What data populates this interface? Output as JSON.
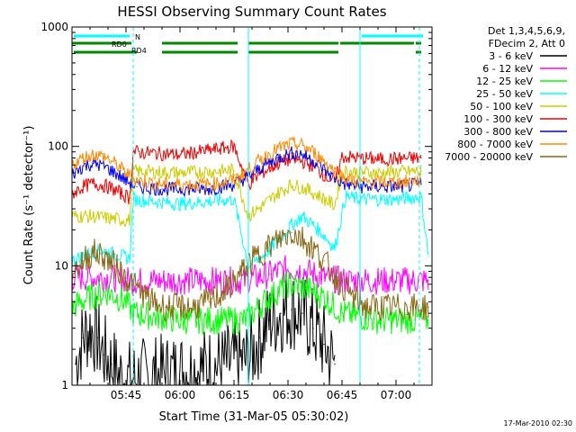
{
  "chart_data": {
    "type": "line",
    "title": "HESSI Observing Summary Count Rates",
    "xlabel": "Start Time (31-Mar-05 05:30:02)",
    "ylabel": "Count Rate (s⁻¹ detector⁻¹)",
    "yscale": "log",
    "xlim": [
      0.0,
      100.0
    ],
    "ylim": [
      1,
      1000
    ],
    "x_units": "minutes after 05:30:00",
    "xticks": [
      {
        "value": 15,
        "label": "05:45"
      },
      {
        "value": 30,
        "label": "06:00"
      },
      {
        "value": 45,
        "label": "06:15"
      },
      {
        "value": 60,
        "label": "06:30"
      },
      {
        "value": 75,
        "label": "06:45"
      },
      {
        "value": 90,
        "label": "07:00"
      }
    ],
    "yticks": [
      {
        "value": 1,
        "label": "1"
      },
      {
        "value": 10,
        "label": "10"
      },
      {
        "value": 100,
        "label": "100"
      },
      {
        "value": 1000,
        "label": "1000"
      }
    ],
    "legend": {
      "position": "right",
      "header": [
        "Det 1,3,4,5,6,9,",
        "FDecim 2, Att 0"
      ],
      "entries": [
        {
          "label": "3 - 6 keV",
          "color": "#000000"
        },
        {
          "label": "6 - 12 keV",
          "color": "#ff00ff"
        },
        {
          "label": "12 - 25 keV",
          "color": "#00ff00"
        },
        {
          "label": "25 - 50 keV",
          "color": "#00ffff"
        },
        {
          "label": "50 - 100 keV",
          "color": "#cccc00"
        },
        {
          "label": "100 - 300 keV",
          "color": "#ee0000"
        },
        {
          "label": "300 - 800 keV",
          "color": "#0000ee"
        },
        {
          "label": "800 - 7000 keV",
          "color": "#ff8800"
        },
        {
          "label": "7000 - 20000 keV",
          "color": "#886611"
        }
      ]
    },
    "flags": [
      {
        "label": "N",
        "color": "#00ffff",
        "segments": [
          [
            0.5,
            16.0
          ],
          [
            80.5,
            97.5
          ]
        ]
      },
      {
        "label": "RD0",
        "color": "#008800",
        "segments": [
          [
            0.0,
            16.5
          ],
          [
            25.0,
            46.0
          ],
          [
            49.0,
            74.0
          ],
          [
            74.5,
            95.0
          ],
          [
            95.5,
            97.0
          ]
        ]
      },
      {
        "label": "RD4",
        "color": "#008800",
        "segments": [
          [
            0.5,
            18.0
          ],
          [
            25.0,
            46.0
          ],
          [
            49.0,
            74.0
          ],
          [
            95.5,
            97.0
          ]
        ]
      }
    ],
    "saa_markers": [
      {
        "x": 17.0,
        "style": "dashed",
        "color": "#00ffff"
      },
      {
        "x": 49.0,
        "style": "solid",
        "color": "#00ffff"
      },
      {
        "x": 80.0,
        "style": "solid",
        "color": "#00ffff"
      },
      {
        "x": 96.5,
        "style": "dashed",
        "color": "#00ffff"
      }
    ],
    "series": [
      {
        "name": "3 - 6 keV",
        "color": "#000000",
        "x": [
          1,
          3,
          5,
          7,
          9,
          11,
          13,
          15,
          49,
          52,
          55,
          58,
          61,
          64,
          67,
          70,
          73
        ],
        "y": [
          1.5,
          2.5,
          3.0,
          2.5,
          1.8,
          1.5,
          1.2,
          1.1,
          1.6,
          2.5,
          3.5,
          4.0,
          4.3,
          4.0,
          3.0,
          2.2,
          1.5
        ]
      },
      {
        "name": "6 - 12 keV",
        "color": "#ff00ff",
        "x": [
          0,
          10,
          17,
          30,
          40,
          48,
          55,
          60,
          65,
          70,
          75,
          85,
          95,
          99
        ],
        "y": [
          8.0,
          8.0,
          7.5,
          7.5,
          7.5,
          7.5,
          8.5,
          9.5,
          9.0,
          8.0,
          7.5,
          7.5,
          7.5,
          7.5
        ]
      },
      {
        "name": "12 - 25 keV",
        "color": "#00ff00",
        "x": [
          0,
          5,
          10,
          15,
          17,
          30,
          40,
          48,
          55,
          60,
          65,
          70,
          75,
          85,
          95,
          99
        ],
        "y": [
          4.5,
          5.5,
          6.0,
          5.0,
          4.0,
          3.5,
          3.5,
          3.5,
          5.5,
          7.0,
          6.5,
          5.5,
          4.0,
          3.5,
          3.5,
          3.5
        ]
      },
      {
        "name": "25 - 50 keV",
        "color": "#00ffff",
        "x": [
          0,
          4,
          8,
          12,
          16,
          17,
          30,
          45,
          49,
          53,
          57,
          61,
          64,
          67,
          70,
          73,
          76,
          80,
          90,
          97,
          99
        ],
        "y": [
          11.0,
          12.5,
          13.5,
          12.5,
          11.5,
          36.0,
          33.0,
          36.0,
          10.0,
          12.0,
          16.0,
          22.0,
          26.0,
          22.0,
          18.0,
          14.0,
          38.0,
          36.0,
          36.0,
          38.0,
          12.0
        ]
      },
      {
        "name": "50 - 100 keV",
        "color": "#cccc00",
        "x": [
          0,
          5,
          10,
          16,
          17,
          30,
          45,
          49,
          53,
          57,
          61,
          65,
          69,
          73,
          75,
          85,
          97
        ],
        "y": [
          26.0,
          26.0,
          25.0,
          24.0,
          62.0,
          60.0,
          63.0,
          26.0,
          32.0,
          40.0,
          48.0,
          44.0,
          38.0,
          32.0,
          62.0,
          60.0,
          62.0
        ]
      },
      {
        "name": "100 - 300 keV",
        "color": "#ee0000",
        "x": [
          0,
          3,
          6,
          9,
          12,
          16,
          17,
          30,
          45,
          49,
          52,
          55,
          58,
          61,
          64,
          67,
          70,
          73,
          75,
          85,
          97
        ],
        "y": [
          40.0,
          46.0,
          49.0,
          47.0,
          43.0,
          37.0,
          90.0,
          85.0,
          100.0,
          48.0,
          58.0,
          66.0,
          74.0,
          78.0,
          75.0,
          68.0,
          58.0,
          50.0,
          82.0,
          78.0,
          80.0
        ]
      },
      {
        "name": "300 - 800 keV",
        "color": "#0000ee",
        "x": [
          0,
          3,
          6,
          9,
          12,
          15,
          18,
          25,
          30,
          38,
          45,
          49,
          53,
          57,
          61,
          64,
          67,
          70,
          73,
          76,
          80,
          90,
          97
        ],
        "y": [
          58.0,
          68.0,
          72.0,
          68.0,
          60.0,
          52.0,
          46.0,
          44.0,
          44.0,
          44.0,
          48.0,
          56.0,
          68.0,
          80.0,
          88.0,
          86.0,
          76.0,
          64.0,
          54.0,
          48.0,
          46.0,
          46.0,
          48.0
        ]
      },
      {
        "name": "800 - 7000 keV",
        "color": "#ff8800",
        "x": [
          0,
          3,
          6,
          9,
          12,
          15,
          18,
          25,
          30,
          38,
          45,
          49,
          53,
          57,
          61,
          64,
          67,
          70,
          73,
          76,
          80,
          90,
          97
        ],
        "y": [
          70.0,
          80.0,
          86.0,
          82.0,
          72.0,
          60.0,
          52.0,
          48.0,
          48.0,
          48.0,
          52.0,
          64.0,
          80.0,
          95.0,
          105.0,
          102.0,
          90.0,
          76.0,
          62.0,
          54.0,
          50.0,
          50.0,
          52.0
        ]
      },
      {
        "name": "7000 - 20000 keV",
        "color": "#886611",
        "x": [
          0,
          3,
          6,
          9,
          12,
          15,
          18,
          22,
          26,
          30,
          34,
          38,
          42,
          46,
          50,
          54,
          58,
          61,
          64,
          67,
          70,
          74,
          78,
          82,
          86,
          90,
          94,
          99
        ],
        "y": [
          9.0,
          11.0,
          13.0,
          12.0,
          10.0,
          8.0,
          6.5,
          5.0,
          4.5,
          4.5,
          4.5,
          5.0,
          6.0,
          8.0,
          11.0,
          14.0,
          17.0,
          19.0,
          17.0,
          14.0,
          11.0,
          7.5,
          5.5,
          4.5,
          4.5,
          4.5,
          4.5,
          4.5
        ]
      }
    ]
  },
  "footer": {
    "timestamp": "17-Mar-2010 02:30"
  }
}
